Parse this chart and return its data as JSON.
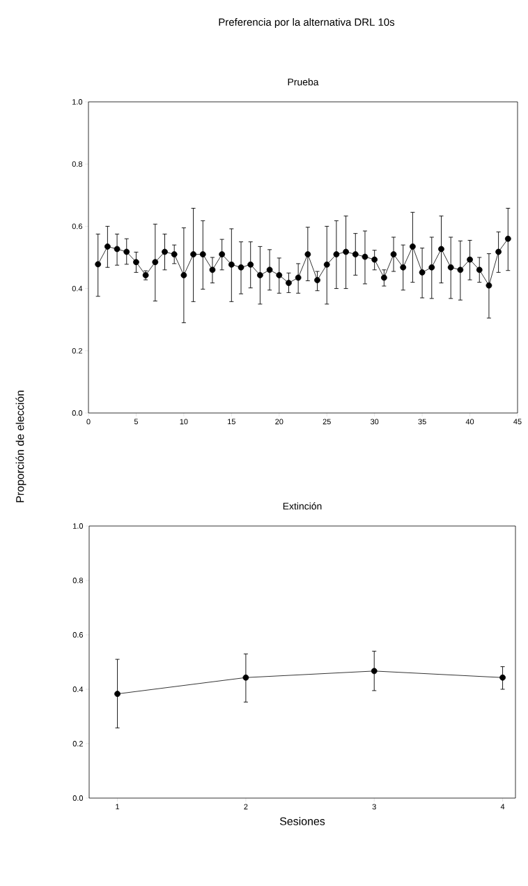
{
  "chart_data": [
    {
      "type": "line",
      "title": "Preferencia por la alternativa DRL 10s",
      "subtitle": "Prueba",
      "x": [
        1,
        2,
        3,
        4,
        5,
        6,
        7,
        8,
        9,
        10,
        11,
        12,
        13,
        14,
        15,
        16,
        17,
        18,
        19,
        20,
        21,
        22,
        23,
        24,
        25,
        26,
        27,
        28,
        29,
        30,
        31,
        32,
        33,
        34,
        35,
        36,
        37,
        38,
        39,
        40,
        41,
        42,
        43,
        44
      ],
      "series": [
        {
          "color": "#000000",
          "values": [
            0.478,
            0.535,
            0.527,
            0.518,
            0.485,
            0.443,
            0.485,
            0.518,
            0.51,
            0.443,
            0.51,
            0.51,
            0.46,
            0.51,
            0.477,
            0.468,
            0.477,
            0.443,
            0.46,
            0.443,
            0.418,
            0.435,
            0.51,
            0.427,
            0.477,
            0.51,
            0.518,
            0.51,
            0.502,
            0.493,
            0.435,
            0.51,
            0.468,
            0.535,
            0.452,
            0.468,
            0.527,
            0.468,
            0.46,
            0.493,
            0.46,
            0.41,
            0.518,
            0.56
          ],
          "errors": [
            [
              0.375,
              0.575
            ],
            [
              0.468,
              0.6
            ],
            [
              0.475,
              0.575
            ],
            [
              0.478,
              0.56
            ],
            [
              0.452,
              0.517
            ],
            [
              0.428,
              0.457
            ],
            [
              0.36,
              0.607
            ],
            [
              0.46,
              0.575
            ],
            [
              0.48,
              0.54
            ],
            [
              0.29,
              0.595
            ],
            [
              0.358,
              0.658
            ],
            [
              0.398,
              0.618
            ],
            [
              0.418,
              0.5
            ],
            [
              0.46,
              0.558
            ],
            [
              0.358,
              0.592
            ],
            [
              0.383,
              0.55
            ],
            [
              0.402,
              0.55
            ],
            [
              0.35,
              0.535
            ],
            [
              0.395,
              0.525
            ],
            [
              0.385,
              0.498
            ],
            [
              0.387,
              0.45
            ],
            [
              0.385,
              0.48
            ],
            [
              0.425,
              0.597
            ],
            [
              0.393,
              0.455
            ],
            [
              0.35,
              0.6
            ],
            [
              0.4,
              0.618
            ],
            [
              0.4,
              0.633
            ],
            [
              0.443,
              0.577
            ],
            [
              0.415,
              0.585
            ],
            [
              0.46,
              0.523
            ],
            [
              0.408,
              0.46
            ],
            [
              0.455,
              0.565
            ],
            [
              0.395,
              0.54
            ],
            [
              0.42,
              0.645
            ],
            [
              0.37,
              0.53
            ],
            [
              0.368,
              0.565
            ],
            [
              0.418,
              0.633
            ],
            [
              0.368,
              0.565
            ],
            [
              0.363,
              0.553
            ],
            [
              0.428,
              0.555
            ],
            [
              0.42,
              0.5
            ],
            [
              0.305,
              0.512
            ],
            [
              0.452,
              0.582
            ],
            [
              0.458,
              0.658
            ]
          ]
        }
      ],
      "xlim": [
        0,
        45
      ],
      "xticks": [
        0,
        5,
        10,
        15,
        20,
        25,
        30,
        35,
        40,
        45
      ],
      "ylim": [
        0,
        1
      ],
      "yticks": [
        {
          "value": 0,
          "label": "0.0"
        },
        {
          "value": 0.2,
          "label": "0.2"
        },
        {
          "value": 0.4,
          "label": "0.4"
        },
        {
          "value": 0.6,
          "label": "0.6"
        },
        {
          "value": 0.8,
          "label": "0.8"
        },
        {
          "value": 1,
          "label": "1.0"
        }
      ],
      "marker": "circle",
      "line_style": "solid"
    },
    {
      "type": "line",
      "title": "Extinción",
      "xlabel": "Sesiones",
      "ylabel": "Proporción de elección",
      "x": [
        1,
        2,
        3,
        4
      ],
      "series": [
        {
          "color": "#000000",
          "values": [
            0.383,
            0.443,
            0.467,
            0.443
          ],
          "errors": [
            [
              0.258,
              0.51
            ],
            [
              0.353,
              0.53
            ],
            [
              0.395,
              0.54
            ],
            [
              0.4,
              0.483
            ]
          ]
        }
      ],
      "xlim": [
        0.78,
        4.1
      ],
      "xticks": [
        1,
        2,
        3,
        4
      ],
      "ylim": [
        0,
        1
      ],
      "yticks": [
        {
          "value": 0,
          "label": "0.0"
        },
        {
          "value": 0.2,
          "label": "0.2"
        },
        {
          "value": 0.4,
          "label": "0.4"
        },
        {
          "value": 0.6,
          "label": "0.6"
        },
        {
          "value": 0.8,
          "label": "0.8"
        },
        {
          "value": 1,
          "label": "1.0"
        }
      ],
      "marker": "circle",
      "line_style": "solid"
    }
  ]
}
